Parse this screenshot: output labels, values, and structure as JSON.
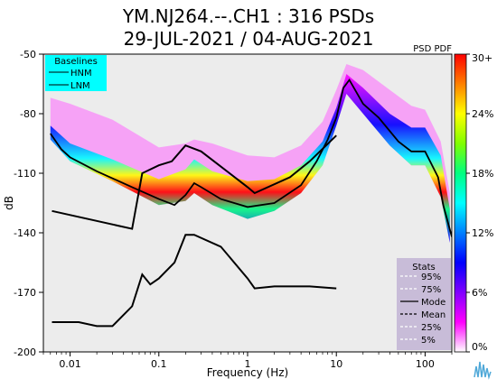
{
  "chart_data": {
    "type": "heatmap",
    "title": "YM.NJ264.--.CH1 : 316 PSDs",
    "subtitle": "29-JUL-2021 / 04-AUG-2021",
    "xlabel": "Frequency (Hz)",
    "ylabel": "dB",
    "x_scale": "log",
    "xlim": [
      0.005,
      200
    ],
    "ylim": [
      -200,
      -50
    ],
    "x_ticks": [
      {
        "value": 0.01,
        "label": "0.01"
      },
      {
        "value": 0.1,
        "label": "0.1"
      },
      {
        "value": 1,
        "label": "1"
      },
      {
        "value": 10,
        "label": "10"
      },
      {
        "value": 100,
        "label": "100"
      }
    ],
    "y_ticks": [
      {
        "value": -50,
        "label": "-50"
      },
      {
        "value": -80,
        "label": "-80"
      },
      {
        "value": -110,
        "label": "-110"
      },
      {
        "value": -140,
        "label": "-140"
      },
      {
        "value": -170,
        "label": "-170"
      },
      {
        "value": -200,
        "label": "-200"
      }
    ],
    "pdf_label": "PSD PDF",
    "colorbar": {
      "ticks": [
        "30+",
        "24%",
        "18%",
        "12%",
        "6%",
        "0%"
      ],
      "colors": [
        "#ff0000",
        "#ff8000",
        "#ffff00",
        "#80ff00",
        "#00ff80",
        "#00ffff",
        "#0080ff",
        "#0000ff",
        "#8000ff",
        "#ff00ff",
        "#ffffff"
      ]
    },
    "baselines": {
      "title": "Baselines",
      "items": [
        "HNM",
        "LNM"
      ],
      "hnm": {
        "x": [
          0.00625,
          0.05,
          0.065,
          0.1,
          0.14,
          0.2,
          0.3,
          1,
          1.2,
          3,
          5,
          10
        ],
        "y": [
          -129,
          -138,
          -110,
          -106,
          -104,
          -96,
          -99,
          -117,
          -120,
          -112,
          -104,
          -91
        ]
      },
      "lnm": {
        "x": [
          0.00625,
          0.0125,
          0.02,
          0.03,
          0.05,
          0.065,
          0.08,
          0.1,
          0.15,
          0.2,
          0.25,
          0.5,
          1,
          1.2,
          2,
          5,
          10
        ],
        "y": [
          -185,
          -185,
          -187,
          -187,
          -177,
          -161,
          -166,
          -163,
          -155,
          -141,
          -141,
          -147,
          -163,
          -168,
          -167,
          -167,
          -168
        ]
      },
      "color": "#000000"
    },
    "stats": {
      "title": "Stats",
      "items": [
        {
          "label": "95%",
          "style": "dashed",
          "color": "#ffffff"
        },
        {
          "label": "75%",
          "style": "dashed",
          "color": "#ffffff"
        },
        {
          "label": "Mode",
          "style": "solid",
          "color": "#000000"
        },
        {
          "label": "Mean",
          "style": "dashed",
          "color": "#000000"
        },
        {
          "label": "25%",
          "style": "dashed",
          "color": "#ffffff"
        },
        {
          "label": "5%",
          "style": "dashed",
          "color": "#ffffff"
        }
      ]
    },
    "mode_curve": {
      "x": [
        0.006,
        0.008,
        0.01,
        0.02,
        0.05,
        0.1,
        0.15,
        0.2,
        0.25,
        0.3,
        0.5,
        1,
        2,
        4,
        6,
        8,
        10,
        12,
        14,
        20,
        30,
        50,
        70,
        100,
        140,
        160,
        200
      ],
      "y": [
        -90,
        -98,
        -102,
        -109,
        -117,
        -123,
        -126,
        -121,
        -115,
        -117,
        -123,
        -127,
        -125,
        -116,
        -104,
        -93,
        -82,
        -67,
        -63,
        -75,
        -82,
        -94,
        -99,
        -99,
        -112,
        -126,
        -142
      ]
    },
    "pdf_band": {
      "x": [
        0.006,
        0.01,
        0.03,
        0.1,
        0.2,
        0.25,
        0.4,
        1,
        2,
        4,
        7,
        10,
        13,
        20,
        40,
        70,
        100,
        150,
        190
      ],
      "low": [
        -93,
        -104,
        -114,
        -126,
        -124,
        -120,
        -126,
        -133,
        -129,
        -120,
        -106,
        -86,
        -70,
        -80,
        -96,
        -106,
        -106,
        -122,
        -145
      ],
      "high": [
        -86,
        -95,
        -103,
        -113,
        -108,
        -103,
        -109,
        -114,
        -113,
        -106,
        -94,
        -77,
        -60,
        -67,
        -80,
        -87,
        -87,
        -101,
        -128
      ],
      "sparse_high": [
        -72,
        -75,
        -83,
        -97,
        -95,
        -93,
        -95,
        -101,
        -102,
        -96,
        -84,
        -68,
        -55,
        -58,
        -68,
        -76,
        -78,
        -94,
        -120
      ]
    }
  }
}
